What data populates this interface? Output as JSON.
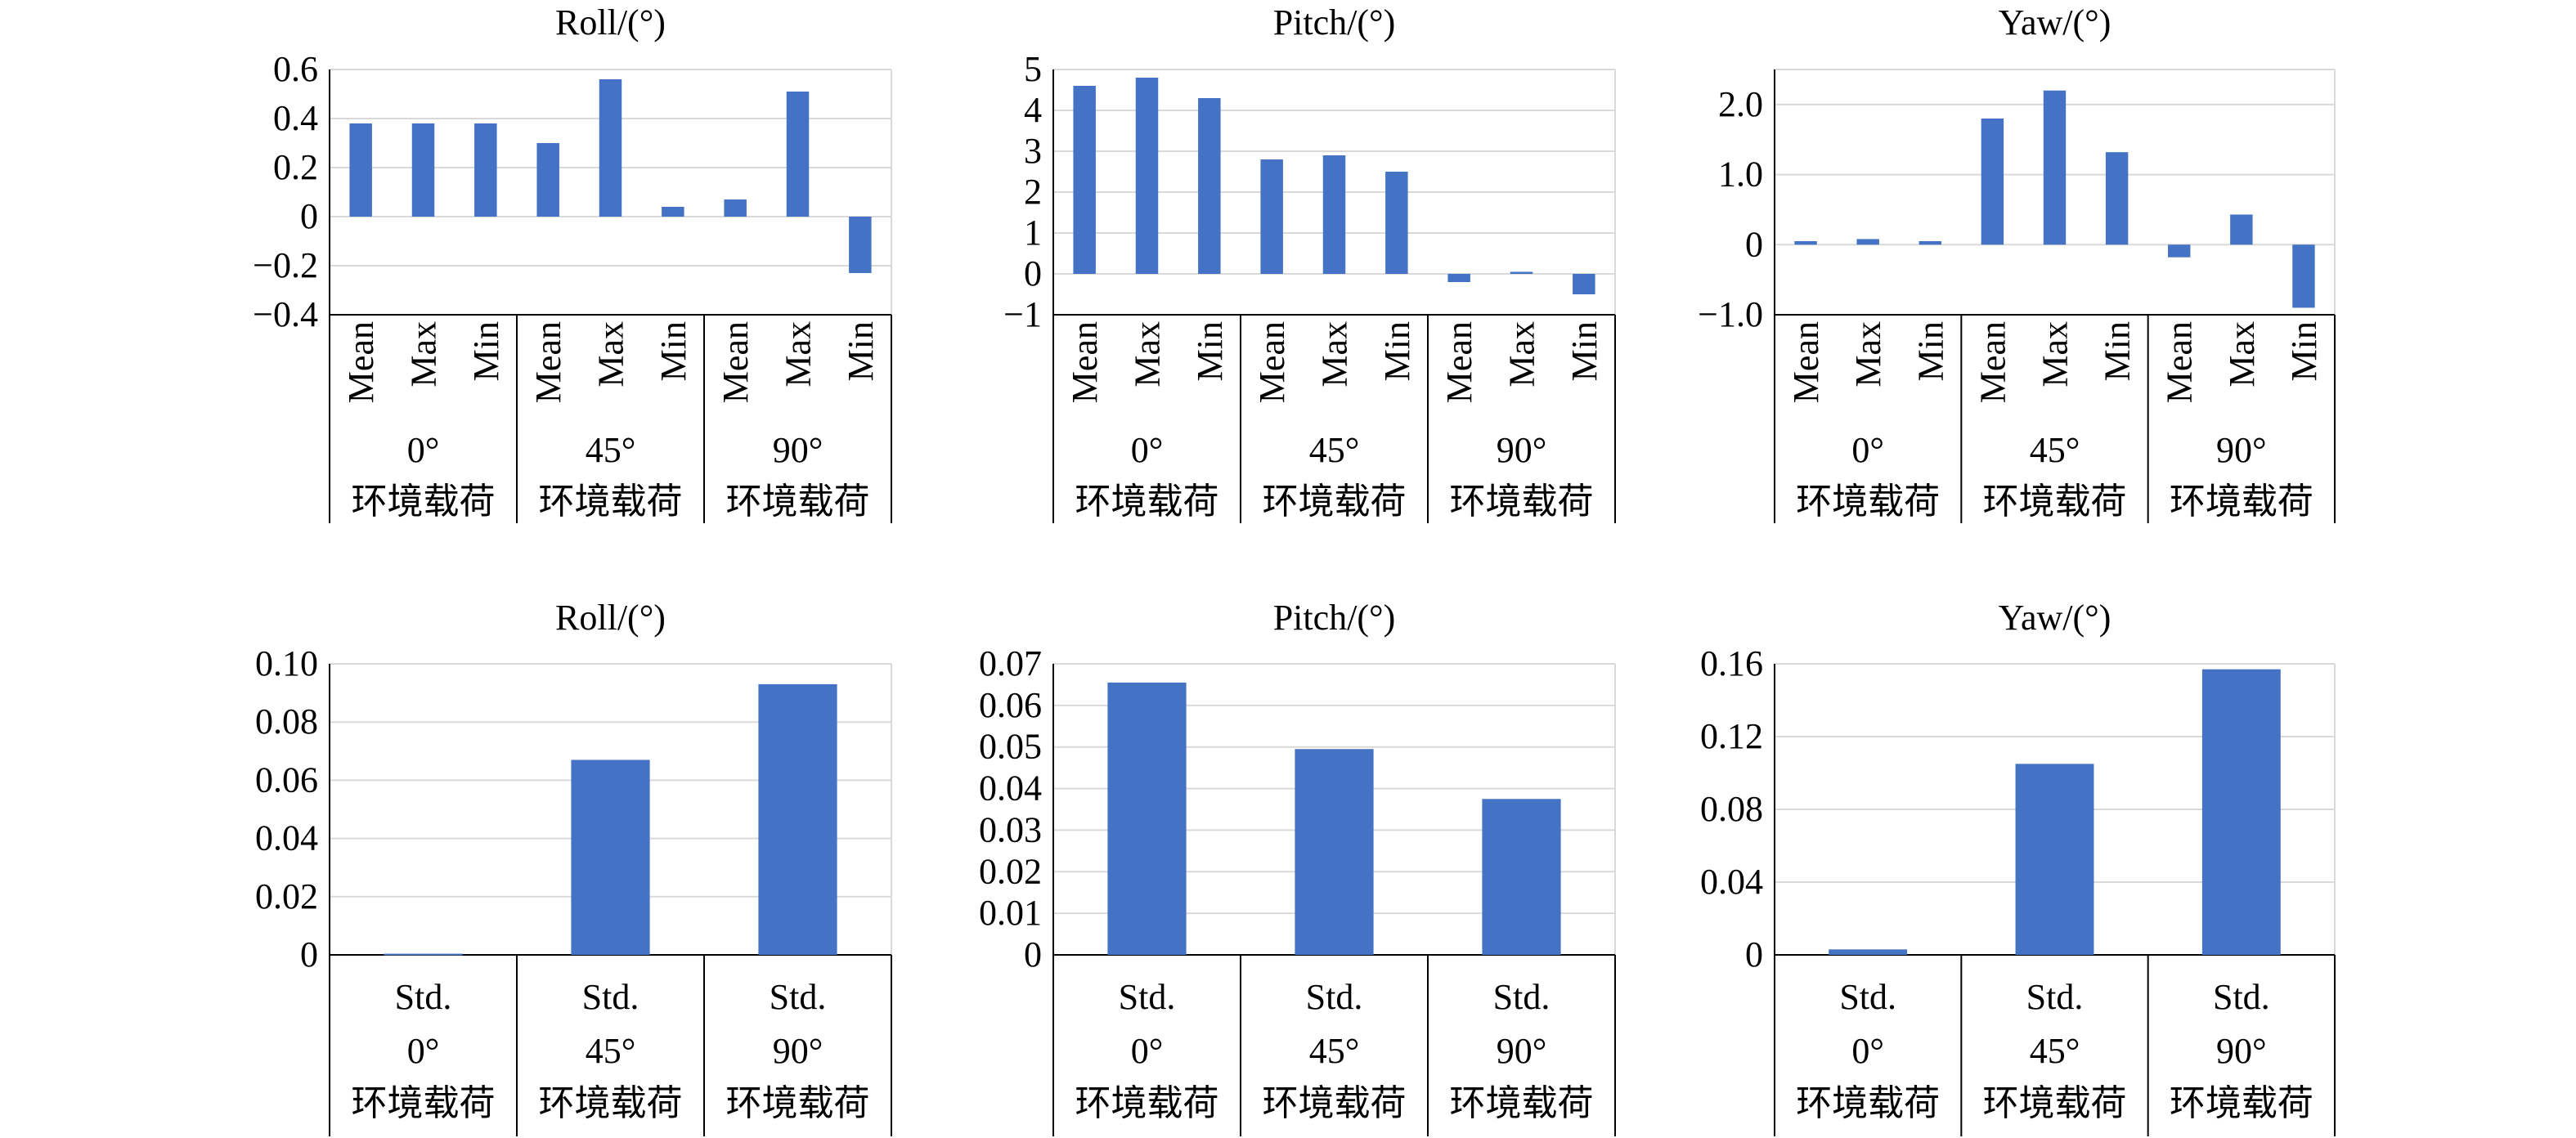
{
  "colors": {
    "bar": "#4472c4",
    "grid": "#d9d9d9",
    "axis": "#000000"
  },
  "groups": [
    "0°",
    "45°",
    "90°"
  ],
  "group_sublabel": "环境载荷",
  "chart_data": [
    {
      "type": "bar",
      "title": "Roll/(°)",
      "categories": [
        "Mean",
        "Max",
        "Min",
        "Mean",
        "Max",
        "Min",
        "Mean",
        "Max",
        "Min"
      ],
      "values": [
        0.38,
        0.38,
        0.38,
        0.3,
        0.56,
        0.04,
        0.07,
        0.51,
        -0.23
      ],
      "ylim": [
        -0.4,
        0.6
      ],
      "yticks": [
        -0.4,
        -0.2,
        0,
        0.2,
        0.4,
        0.6
      ],
      "ytick_labels": [
        "−0.4",
        "−0.2",
        "0",
        "0.2",
        "0.4",
        "0.6"
      ],
      "grid": true
    },
    {
      "type": "bar",
      "title": "Pitch/(°)",
      "categories": [
        "Mean",
        "Max",
        "Min",
        "Mean",
        "Max",
        "Min",
        "Mean",
        "Max",
        "Min"
      ],
      "values": [
        4.6,
        4.8,
        4.3,
        2.8,
        2.9,
        2.5,
        -0.2,
        0.05,
        -0.5
      ],
      "ylim": [
        -1,
        5
      ],
      "yticks": [
        -1,
        0,
        1,
        2,
        3,
        4,
        5
      ],
      "ytick_labels": [
        "−1",
        "0",
        "1",
        "2",
        "3",
        "4",
        "5"
      ],
      "grid": true
    },
    {
      "type": "bar",
      "title": "Yaw/(°)",
      "categories": [
        "Mean",
        "Max",
        "Min",
        "Mean",
        "Max",
        "Min",
        "Mean",
        "Max",
        "Min"
      ],
      "values": [
        0.05,
        0.08,
        0.05,
        1.8,
        2.2,
        1.32,
        -0.18,
        0.43,
        -0.9
      ],
      "ylim": [
        -1.0,
        2.5
      ],
      "yticks": [
        -1.0,
        0,
        1.0,
        2.0
      ],
      "ytick_labels": [
        "−1.0",
        "0",
        "1.0",
        "2.0"
      ],
      "grid": true
    },
    {
      "type": "bar",
      "title": "Roll/(°)",
      "categories": [
        "Std.",
        "Std.",
        "Std."
      ],
      "values": [
        0.0004,
        0.067,
        0.093
      ],
      "ylim": [
        0,
        0.1
      ],
      "yticks": [
        0,
        0.02,
        0.04,
        0.06,
        0.08,
        0.1
      ],
      "ytick_labels": [
        "0",
        "0.02",
        "0.04",
        "0.06",
        "0.08",
        "0.10"
      ],
      "grid": true
    },
    {
      "type": "bar",
      "title": "Pitch/(°)",
      "categories": [
        "Std.",
        "Std.",
        "Std."
      ],
      "values": [
        0.0655,
        0.0495,
        0.0375
      ],
      "ylim": [
        0,
        0.07
      ],
      "yticks": [
        0,
        0.01,
        0.02,
        0.03,
        0.04,
        0.05,
        0.06,
        0.07
      ],
      "ytick_labels": [
        "0",
        "0.01",
        "0.02",
        "0.03",
        "0.04",
        "0.05",
        "0.06",
        "0.07"
      ],
      "grid": true
    },
    {
      "type": "bar",
      "title": "Yaw/(°)",
      "categories": [
        "Std.",
        "Std.",
        "Std."
      ],
      "values": [
        0.003,
        0.105,
        0.157
      ],
      "ylim": [
        0,
        0.16
      ],
      "yticks": [
        0,
        0.04,
        0.08,
        0.12,
        0.16
      ],
      "ytick_labels": [
        "0",
        "0.04",
        "0.08",
        "0.12",
        "0.16"
      ],
      "grid": true
    }
  ]
}
